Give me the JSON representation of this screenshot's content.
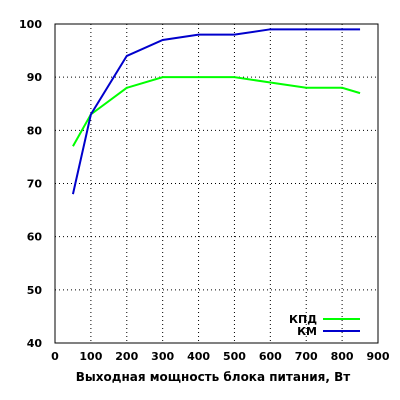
{
  "chart_data": {
    "type": "line",
    "xlabel": "Выходная мощность блока питания, Вт",
    "ylabel": "",
    "xlim": [
      0,
      900
    ],
    "ylim": [
      40,
      100
    ],
    "xticks": [
      0,
      100,
      200,
      300,
      400,
      500,
      600,
      700,
      800,
      900
    ],
    "yticks": [
      40,
      50,
      60,
      70,
      80,
      90,
      100
    ],
    "grid": true,
    "legend_position": "bottom-right",
    "series": [
      {
        "name": "КПД",
        "color": "#00ff00",
        "x": [
          50,
          100,
          200,
          300,
          400,
          500,
          600,
          700,
          800,
          850
        ],
        "y": [
          77,
          83,
          88,
          90,
          90,
          90,
          89,
          88,
          88,
          87
        ]
      },
      {
        "name": "КМ",
        "color": "#0000cc",
        "x": [
          50,
          100,
          200,
          300,
          400,
          500,
          600,
          700,
          800,
          850
        ],
        "y": [
          68,
          83,
          94,
          97,
          98,
          98,
          99,
          99,
          99,
          99
        ]
      }
    ]
  }
}
